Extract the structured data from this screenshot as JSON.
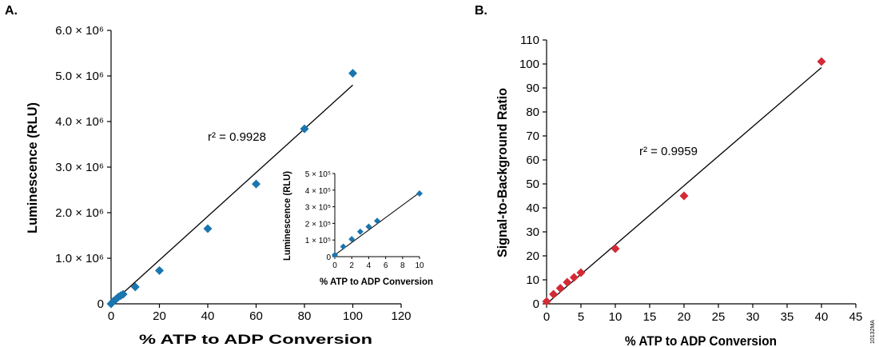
{
  "figure_code": "10132MA",
  "colors": {
    "series_a": "#1b75ae",
    "series_b": "#d42a35",
    "axis": "#000000"
  },
  "chart_data": [
    {
      "id": "a",
      "panel_label": "A.",
      "type": "scatter",
      "xlabel": "% ATP to ADP Conversion",
      "ylabel": "Luminescence (RLU)",
      "xlim": [
        0,
        120
      ],
      "ylim": [
        0,
        6000000
      ],
      "x_ticks": [
        0,
        20,
        40,
        60,
        80,
        100,
        120
      ],
      "y_ticks": [
        {
          "value": 0,
          "label": "0"
        },
        {
          "value": 1000000,
          "label": "1.0 × 10⁶"
        },
        {
          "value": 2000000,
          "label": "2.0 × 10⁶"
        },
        {
          "value": 3000000,
          "label": "3.0 × 10⁶"
        },
        {
          "value": 4000000,
          "label": "4.0 × 10⁶"
        },
        {
          "value": 5000000,
          "label": "5.0 × 10⁶"
        },
        {
          "value": 6000000,
          "label": "6.0 × 10⁶"
        }
      ],
      "points": [
        [
          0,
          0
        ],
        [
          1,
          60000
        ],
        [
          2,
          100000
        ],
        [
          3,
          150000
        ],
        [
          4,
          180000
        ],
        [
          5,
          210000
        ],
        [
          10,
          370000
        ],
        [
          20,
          730000
        ],
        [
          40,
          1650000
        ],
        [
          60,
          2630000
        ],
        [
          80,
          3840000
        ],
        [
          100,
          5060000
        ]
      ],
      "fit_line": [
        [
          0,
          0
        ],
        [
          100,
          4800000
        ]
      ],
      "annotation": "r² = 0.9928",
      "inset": {
        "type": "scatter",
        "xlabel": "% ATP to ADP Conversion",
        "ylabel": "Luminescence (RLU)",
        "xlim": [
          0,
          10
        ],
        "ylim": [
          0,
          500000
        ],
        "x_ticks": [
          0,
          2,
          4,
          6,
          8,
          10
        ],
        "y_ticks": [
          {
            "value": 0,
            "label": "0"
          },
          {
            "value": 100000,
            "label": "1 × 10⁵"
          },
          {
            "value": 200000,
            "label": "2 × 10⁵"
          },
          {
            "value": 300000,
            "label": "3 × 10⁵"
          },
          {
            "value": 400000,
            "label": "4 × 10⁵"
          },
          {
            "value": 500000,
            "label": "5 × 10⁵"
          }
        ],
        "points": [
          [
            0,
            10000
          ],
          [
            1,
            60000
          ],
          [
            2,
            105000
          ],
          [
            3,
            150000
          ],
          [
            4,
            180000
          ],
          [
            5,
            215000
          ],
          [
            10,
            380000
          ]
        ],
        "fit_line": [
          [
            0,
            10000
          ],
          [
            10,
            385000
          ]
        ]
      }
    },
    {
      "id": "b",
      "panel_label": "B.",
      "type": "scatter",
      "xlabel": "% ATP to ADP Conversion",
      "ylabel": "Signal-to-Background Ratio",
      "xlim": [
        0,
        45
      ],
      "ylim": [
        0,
        110
      ],
      "x_ticks": [
        0,
        5,
        10,
        15,
        20,
        25,
        30,
        35,
        40,
        45
      ],
      "y_ticks": [
        {
          "value": 0,
          "label": "0"
        },
        {
          "value": 10,
          "label": "10"
        },
        {
          "value": 20,
          "label": "20"
        },
        {
          "value": 30,
          "label": "30"
        },
        {
          "value": 40,
          "label": "40"
        },
        {
          "value": 50,
          "label": "50"
        },
        {
          "value": 60,
          "label": "60"
        },
        {
          "value": 70,
          "label": "70"
        },
        {
          "value": 80,
          "label": "80"
        },
        {
          "value": 90,
          "label": "90"
        },
        {
          "value": 100,
          "label": "100"
        },
        {
          "value": 110,
          "label": "110"
        }
      ],
      "points": [
        [
          0,
          1
        ],
        [
          1,
          4
        ],
        [
          2,
          6.5
        ],
        [
          3,
          9
        ],
        [
          4,
          11
        ],
        [
          5,
          13
        ],
        [
          10,
          23
        ],
        [
          20,
          45
        ],
        [
          40,
          101
        ]
      ],
      "fit_line": [
        [
          0,
          0
        ],
        [
          40,
          98.5
        ]
      ],
      "annotation": "r² = 0.9959"
    }
  ]
}
